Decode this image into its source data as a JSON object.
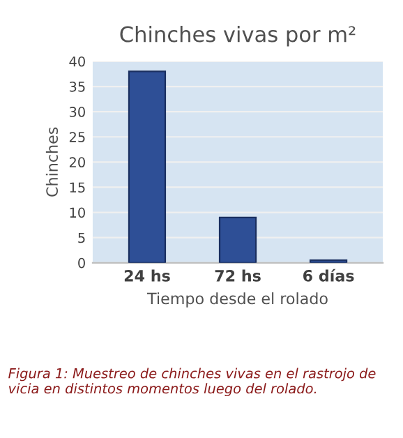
{
  "chart_data": {
    "type": "bar",
    "title": "Chinches vivas por m²",
    "xlabel": "Tiempo desde el rolado",
    "ylabel": "Chinches",
    "categories": [
      "24 hs",
      "72 hs",
      "6 días"
    ],
    "values": [
      38,
      9,
      0.5
    ],
    "color": "#2e4f96",
    "ylim": [
      0,
      40
    ],
    "yticks": [
      0,
      5,
      10,
      15,
      20,
      25,
      30,
      35,
      40
    ],
    "grid": "y",
    "annotations": [
      "Figura 1: Muestreo de chinches vivas en el rastrojo de vicia en distintos momentos luego del rolado."
    ]
  }
}
